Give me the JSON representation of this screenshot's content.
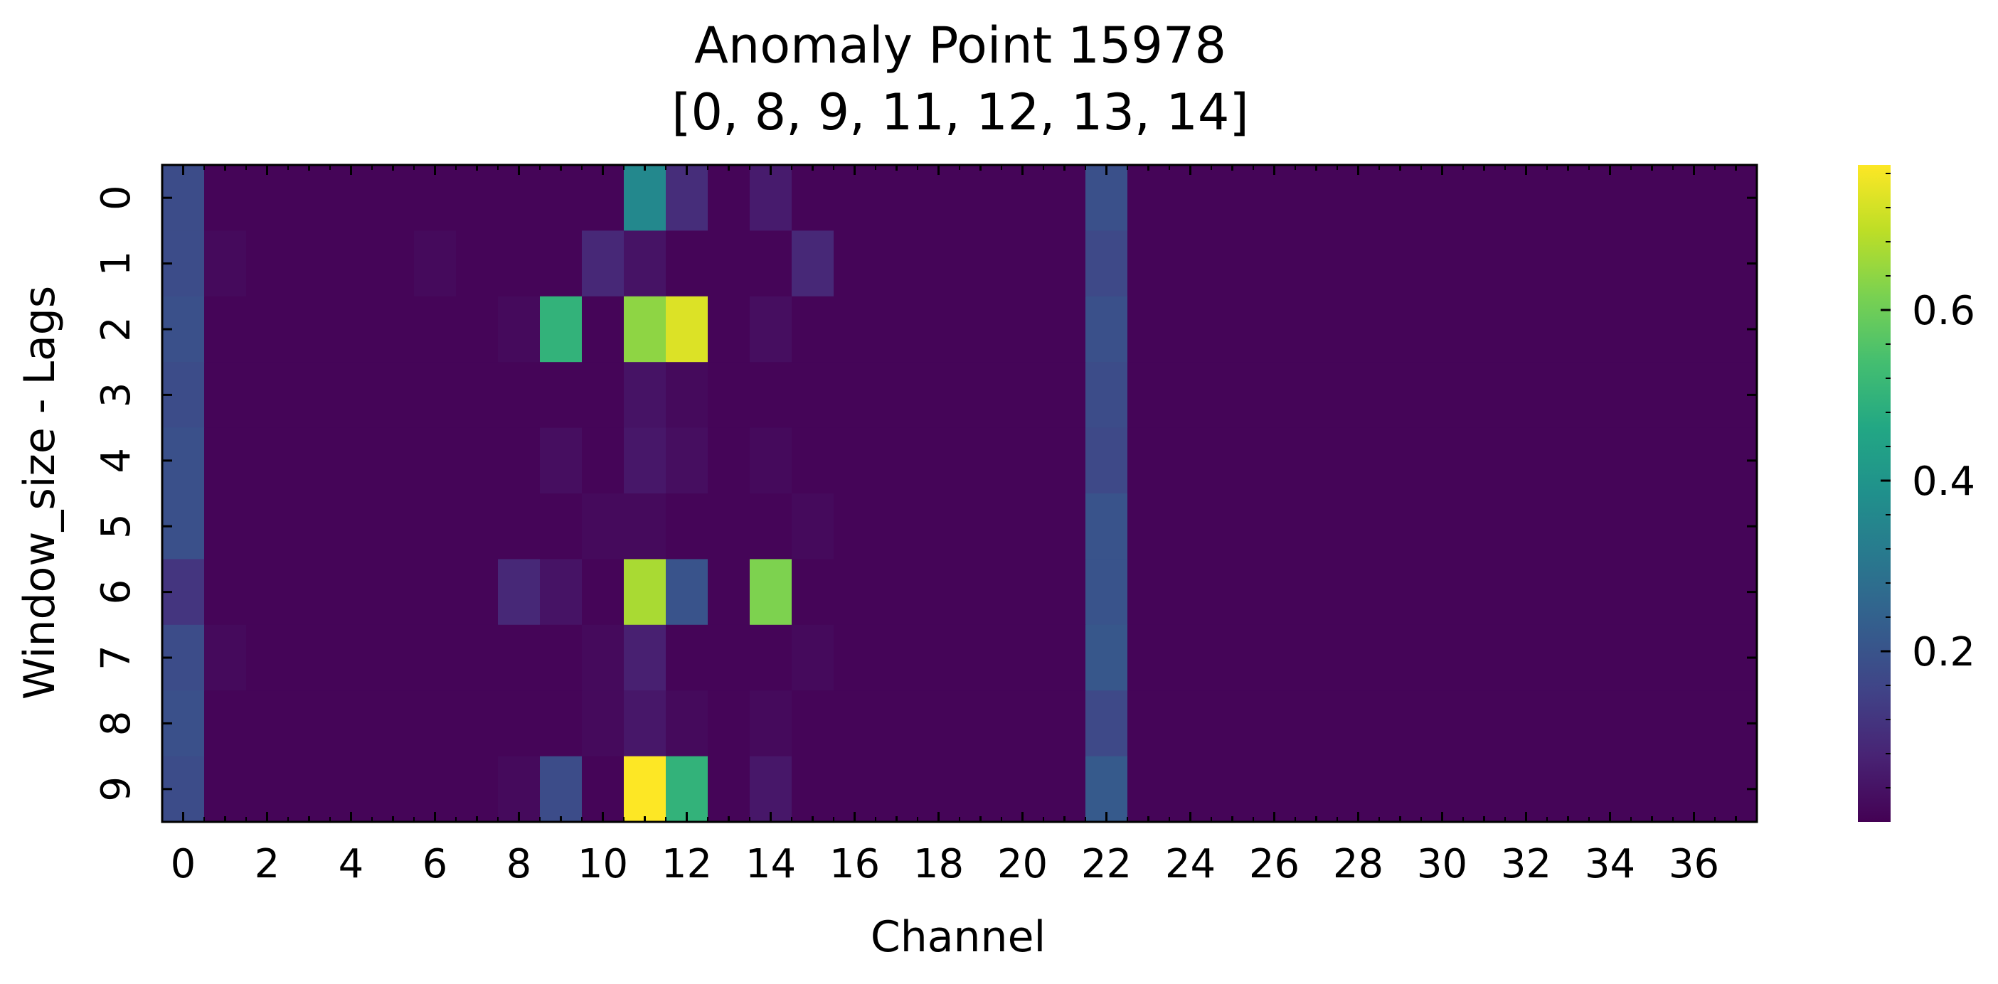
{
  "chart_data": {
    "type": "heatmap",
    "title_lines": [
      "Anomaly Point 15978",
      "[0, 8, 9, 11, 12, 13, 14]"
    ],
    "xlabel": "Channel",
    "ylabel": "Window_size - Lags",
    "x_categories": [
      0,
      1,
      2,
      3,
      4,
      5,
      6,
      7,
      8,
      9,
      10,
      11,
      12,
      13,
      14,
      15,
      16,
      17,
      18,
      19,
      20,
      21,
      22,
      23,
      24,
      25,
      26,
      27,
      28,
      29,
      30,
      31,
      32,
      33,
      34,
      35,
      36,
      37
    ],
    "x_tick_labels": [
      "0",
      "2",
      "4",
      "6",
      "8",
      "10",
      "12",
      "14",
      "16",
      "18",
      "20",
      "22",
      "24",
      "26",
      "28",
      "30",
      "32",
      "34",
      "36"
    ],
    "y_tick_labels": [
      "0",
      "1",
      "2",
      "3",
      "4",
      "5",
      "6",
      "7",
      "8",
      "9"
    ],
    "colormap": "viridis",
    "value_range": [
      0.0,
      0.77
    ],
    "colorbar_ticks": [
      0.2,
      0.4,
      0.6
    ],
    "colorbar_tick_labels": [
      "0.2",
      "0.4",
      "0.6"
    ],
    "values": [
      [
        0.18,
        0.01,
        0.01,
        0.01,
        0.01,
        0.01,
        0.01,
        0.01,
        0.01,
        0.01,
        0.01,
        0.36,
        0.1,
        0.01,
        0.06,
        0.01,
        0.01,
        0.01,
        0.01,
        0.01,
        0.01,
        0.01,
        0.19,
        0.01,
        0.01,
        0.01,
        0.01,
        0.01,
        0.01,
        0.01,
        0.01,
        0.01,
        0.01,
        0.01,
        0.01,
        0.01,
        0.01,
        0.01
      ],
      [
        0.18,
        0.02,
        0.01,
        0.01,
        0.01,
        0.01,
        0.02,
        0.01,
        0.01,
        0.01,
        0.09,
        0.04,
        0.01,
        0.01,
        0.01,
        0.09,
        0.01,
        0.01,
        0.01,
        0.01,
        0.01,
        0.01,
        0.17,
        0.01,
        0.01,
        0.01,
        0.01,
        0.01,
        0.01,
        0.01,
        0.01,
        0.01,
        0.01,
        0.01,
        0.01,
        0.01,
        0.01,
        0.01
      ],
      [
        0.19,
        0.01,
        0.01,
        0.01,
        0.01,
        0.01,
        0.01,
        0.01,
        0.02,
        0.5,
        0.01,
        0.64,
        0.73,
        0.01,
        0.03,
        0.01,
        0.01,
        0.01,
        0.01,
        0.01,
        0.01,
        0.01,
        0.19,
        0.01,
        0.01,
        0.01,
        0.01,
        0.01,
        0.01,
        0.01,
        0.01,
        0.01,
        0.01,
        0.01,
        0.01,
        0.01,
        0.01,
        0.01
      ],
      [
        0.18,
        0.01,
        0.01,
        0.01,
        0.01,
        0.01,
        0.01,
        0.01,
        0.01,
        0.01,
        0.01,
        0.04,
        0.02,
        0.01,
        0.01,
        0.01,
        0.01,
        0.01,
        0.01,
        0.01,
        0.01,
        0.01,
        0.18,
        0.01,
        0.01,
        0.01,
        0.01,
        0.01,
        0.01,
        0.01,
        0.01,
        0.01,
        0.01,
        0.01,
        0.01,
        0.01,
        0.01,
        0.01
      ],
      [
        0.19,
        0.01,
        0.01,
        0.01,
        0.01,
        0.01,
        0.01,
        0.01,
        0.01,
        0.03,
        0.01,
        0.05,
        0.03,
        0.01,
        0.02,
        0.01,
        0.01,
        0.01,
        0.01,
        0.01,
        0.01,
        0.01,
        0.17,
        0.01,
        0.01,
        0.01,
        0.01,
        0.01,
        0.01,
        0.01,
        0.01,
        0.01,
        0.01,
        0.01,
        0.01,
        0.01,
        0.01,
        0.01
      ],
      [
        0.19,
        0.01,
        0.01,
        0.01,
        0.01,
        0.01,
        0.01,
        0.01,
        0.01,
        0.01,
        0.02,
        0.02,
        0.01,
        0.01,
        0.01,
        0.02,
        0.01,
        0.01,
        0.01,
        0.01,
        0.01,
        0.01,
        0.2,
        0.01,
        0.01,
        0.01,
        0.01,
        0.01,
        0.01,
        0.01,
        0.01,
        0.01,
        0.01,
        0.01,
        0.01,
        0.01,
        0.01,
        0.01
      ],
      [
        0.12,
        0.01,
        0.01,
        0.01,
        0.01,
        0.01,
        0.01,
        0.01,
        0.09,
        0.04,
        0.01,
        0.67,
        0.2,
        0.01,
        0.62,
        0.01,
        0.01,
        0.01,
        0.01,
        0.01,
        0.01,
        0.01,
        0.2,
        0.01,
        0.01,
        0.01,
        0.01,
        0.01,
        0.01,
        0.01,
        0.01,
        0.01,
        0.01,
        0.01,
        0.01,
        0.01,
        0.01,
        0.01
      ],
      [
        0.18,
        0.02,
        0.01,
        0.01,
        0.01,
        0.01,
        0.01,
        0.01,
        0.01,
        0.01,
        0.02,
        0.07,
        0.01,
        0.01,
        0.01,
        0.02,
        0.01,
        0.01,
        0.01,
        0.01,
        0.01,
        0.01,
        0.21,
        0.01,
        0.01,
        0.01,
        0.01,
        0.01,
        0.01,
        0.01,
        0.01,
        0.01,
        0.01,
        0.01,
        0.01,
        0.01,
        0.01,
        0.01
      ],
      [
        0.19,
        0.01,
        0.01,
        0.01,
        0.01,
        0.01,
        0.01,
        0.01,
        0.01,
        0.01,
        0.02,
        0.05,
        0.02,
        0.01,
        0.02,
        0.01,
        0.01,
        0.01,
        0.01,
        0.01,
        0.01,
        0.01,
        0.17,
        0.01,
        0.01,
        0.01,
        0.01,
        0.01,
        0.01,
        0.01,
        0.01,
        0.01,
        0.01,
        0.01,
        0.01,
        0.01,
        0.01,
        0.01
      ],
      [
        0.18,
        0.01,
        0.01,
        0.01,
        0.01,
        0.01,
        0.01,
        0.01,
        0.02,
        0.18,
        0.01,
        0.77,
        0.5,
        0.01,
        0.05,
        0.01,
        0.01,
        0.01,
        0.01,
        0.01,
        0.01,
        0.01,
        0.22,
        0.01,
        0.01,
        0.01,
        0.01,
        0.01,
        0.01,
        0.01,
        0.01,
        0.01,
        0.01,
        0.01,
        0.01,
        0.01,
        0.01,
        0.01
      ]
    ]
  }
}
